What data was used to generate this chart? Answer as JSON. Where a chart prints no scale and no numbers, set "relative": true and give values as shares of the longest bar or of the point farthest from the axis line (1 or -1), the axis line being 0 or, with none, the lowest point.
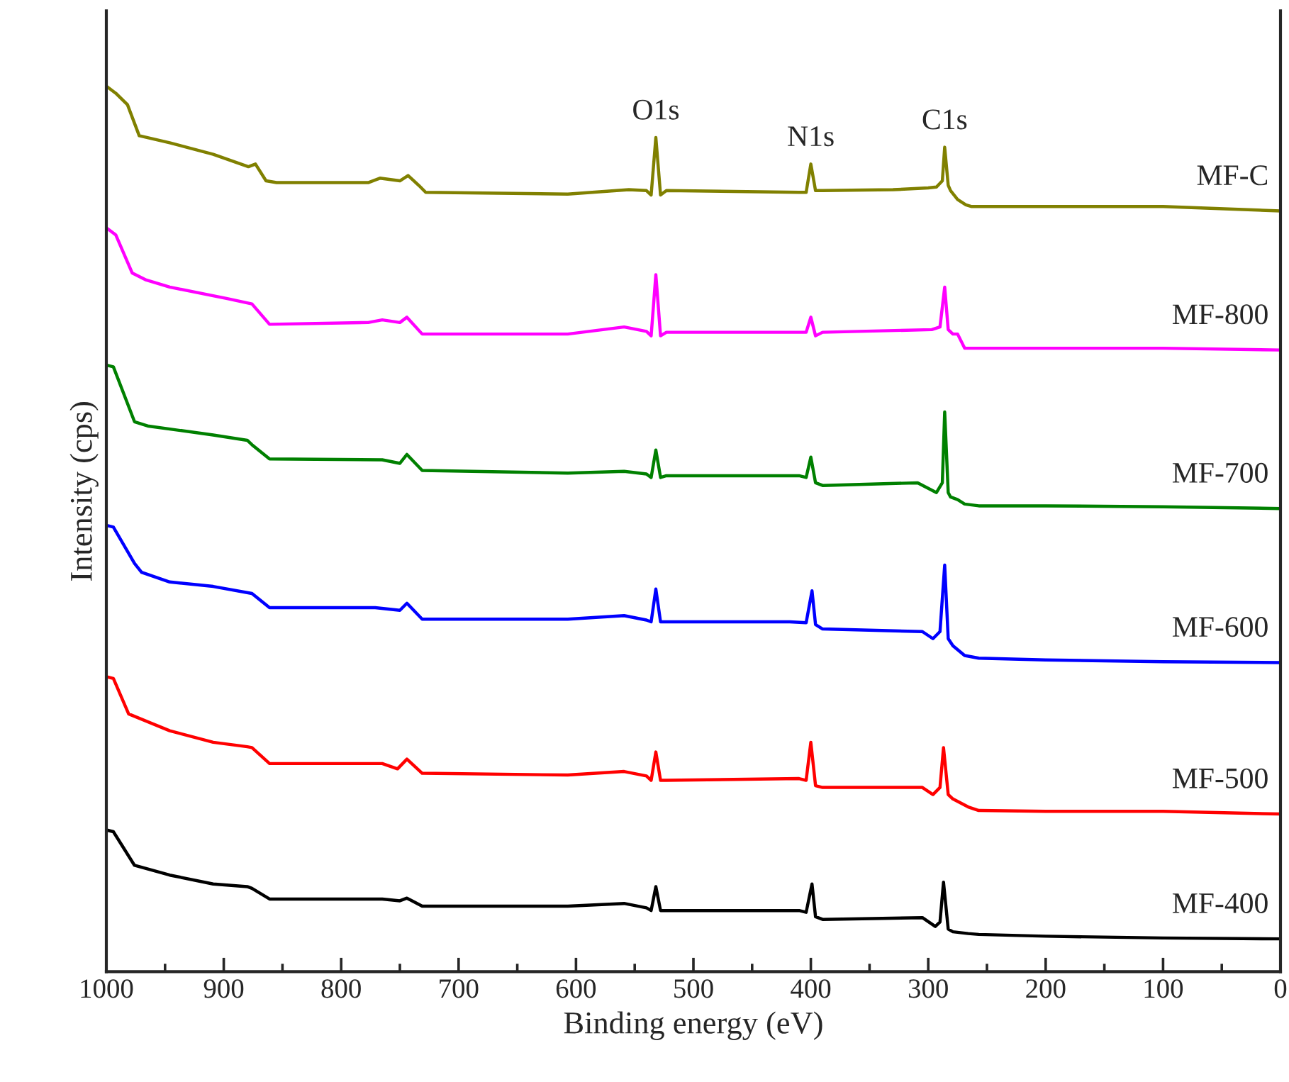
{
  "chart_data": {
    "type": "line",
    "relative": true,
    "xlabel": "Binding energy (eV)",
    "ylabel": "Intensity (cps)",
    "xlim": [
      1000,
      0
    ],
    "xticks": [
      1000,
      {
        "value": 950,
        "label": null
      },
      900,
      {
        "value": 850,
        "label": null
      },
      800,
      {
        "value": 750,
        "label": null
      },
      700,
      {
        "value": 650,
        "label": null
      },
      600,
      {
        "value": 550,
        "label": null
      },
      500,
      {
        "value": 450,
        "label": null
      },
      400,
      {
        "value": 350,
        "label": null
      },
      300,
      {
        "value": 250,
        "label": null
      },
      200,
      {
        "value": 150,
        "label": null
      },
      100,
      {
        "value": 50,
        "label": null
      },
      0
    ],
    "grid": false,
    "legend": false,
    "marker": "none",
    "line_style": "solid",
    "annotations": [
      {
        "text": "O1s",
        "x": 532,
        "y": 0.942
      },
      {
        "text": "N1s",
        "x": 400,
        "y": 0.912
      },
      {
        "text": "C1s",
        "x": 286,
        "y": 0.931
      }
    ],
    "series": [
      {
        "name": "MF-C",
        "color": "#808000",
        "x": [
          1000,
          992,
          982,
          972,
          946,
          909,
          879,
          873,
          864,
          855,
          777,
          767,
          750,
          743,
          734,
          728,
          607,
          555,
          540,
          536,
          532,
          528,
          523,
          410,
          404,
          400,
          396,
          390,
          330,
          300,
          293,
          288,
          286,
          283,
          281,
          275,
          268,
          263,
          200,
          100,
          0
        ],
        "values": [
          1.0,
          0.992,
          0.979,
          0.944,
          0.936,
          0.923,
          0.909,
          0.912,
          0.893,
          0.891,
          0.891,
          0.896,
          0.893,
          0.899,
          0.888,
          0.88,
          0.878,
          0.883,
          0.882,
          0.877,
          0.942,
          0.877,
          0.882,
          0.88,
          0.88,
          0.912,
          0.882,
          0.882,
          0.883,
          0.885,
          0.886,
          0.893,
          0.931,
          0.888,
          0.882,
          0.872,
          0.866,
          0.864,
          0.864,
          0.864,
          0.859
        ]
      },
      {
        "name": "MF-800",
        "color": "#ff00ff",
        "x": [
          1000,
          992,
          978,
          966,
          946,
          897,
          876,
          861,
          777,
          765,
          750,
          744,
          731,
          607,
          559,
          540,
          536,
          532,
          528,
          523,
          410,
          404,
          400,
          396,
          390,
          297,
          290,
          286,
          283,
          279,
          275,
          269,
          200,
          100,
          0
        ],
        "values": [
          0.84,
          0.832,
          0.789,
          0.781,
          0.773,
          0.76,
          0.754,
          0.731,
          0.733,
          0.736,
          0.733,
          0.739,
          0.72,
          0.72,
          0.728,
          0.723,
          0.718,
          0.787,
          0.718,
          0.722,
          0.722,
          0.722,
          0.739,
          0.718,
          0.722,
          0.725,
          0.728,
          0.773,
          0.725,
          0.72,
          0.72,
          0.704,
          0.704,
          0.704,
          0.702
        ]
      },
      {
        "name": "MF-700",
        "color": "#008000",
        "x": [
          1000,
          994,
          976,
          964,
          909,
          880,
          876,
          861,
          765,
          750,
          744,
          731,
          607,
          559,
          540,
          536,
          532,
          528,
          523,
          410,
          404,
          400,
          396,
          390,
          309,
          293,
          288,
          286,
          283,
          281,
          275,
          269,
          257,
          200,
          100,
          0
        ],
        "values": [
          0.685,
          0.683,
          0.621,
          0.616,
          0.606,
          0.6,
          0.595,
          0.579,
          0.578,
          0.574,
          0.584,
          0.566,
          0.563,
          0.565,
          0.562,
          0.558,
          0.589,
          0.558,
          0.56,
          0.56,
          0.558,
          0.581,
          0.552,
          0.549,
          0.552,
          0.541,
          0.552,
          0.632,
          0.541,
          0.536,
          0.533,
          0.528,
          0.526,
          0.526,
          0.525,
          0.523
        ]
      },
      {
        "name": "MF-600",
        "color": "#0000ff",
        "x": [
          1000,
          994,
          976,
          970,
          946,
          909,
          876,
          861,
          771,
          750,
          744,
          731,
          607,
          559,
          540,
          536,
          532,
          528,
          523,
          418,
          404,
          399,
          396,
          390,
          305,
          296,
          290,
          286,
          283,
          279,
          269,
          257,
          200,
          100,
          0
        ],
        "values": [
          0.504,
          0.502,
          0.461,
          0.451,
          0.44,
          0.435,
          0.427,
          0.411,
          0.411,
          0.408,
          0.416,
          0.398,
          0.398,
          0.402,
          0.397,
          0.395,
          0.432,
          0.395,
          0.395,
          0.395,
          0.394,
          0.43,
          0.392,
          0.387,
          0.384,
          0.376,
          0.384,
          0.459,
          0.376,
          0.368,
          0.357,
          0.354,
          0.352,
          0.35,
          0.349
        ]
      },
      {
        "name": "MF-500",
        "color": "#ff0000",
        "x": [
          1000,
          994,
          981,
          946,
          909,
          880,
          876,
          861,
          765,
          752,
          744,
          731,
          607,
          559,
          540,
          536,
          532,
          528,
          523,
          410,
          404,
          400,
          396,
          390,
          305,
          296,
          290,
          287,
          283,
          279,
          266,
          257,
          200,
          100,
          0
        ],
        "values": [
          0.333,
          0.331,
          0.291,
          0.272,
          0.259,
          0.254,
          0.253,
          0.235,
          0.235,
          0.229,
          0.24,
          0.224,
          0.222,
          0.226,
          0.221,
          0.216,
          0.248,
          0.216,
          0.216,
          0.218,
          0.216,
          0.259,
          0.21,
          0.208,
          0.208,
          0.2,
          0.208,
          0.253,
          0.2,
          0.195,
          0.186,
          0.182,
          0.181,
          0.181,
          0.178
        ]
      },
      {
        "name": "MF-400",
        "color": "#000000",
        "x": [
          1000,
          994,
          976,
          946,
          909,
          880,
          876,
          861,
          765,
          750,
          744,
          731,
          607,
          559,
          540,
          536,
          532,
          528,
          523,
          410,
          404,
          399,
          396,
          390,
          305,
          294,
          290,
          287,
          283,
          279,
          266,
          257,
          200,
          100,
          0
        ],
        "values": [
          0.16,
          0.158,
          0.12,
          0.109,
          0.099,
          0.096,
          0.094,
          0.082,
          0.082,
          0.08,
          0.083,
          0.074,
          0.074,
          0.077,
          0.072,
          0.069,
          0.096,
          0.069,
          0.069,
          0.069,
          0.067,
          0.099,
          0.062,
          0.059,
          0.061,
          0.051,
          0.056,
          0.101,
          0.048,
          0.045,
          0.043,
          0.042,
          0.04,
          0.038,
          0.037
        ]
      }
    ]
  }
}
